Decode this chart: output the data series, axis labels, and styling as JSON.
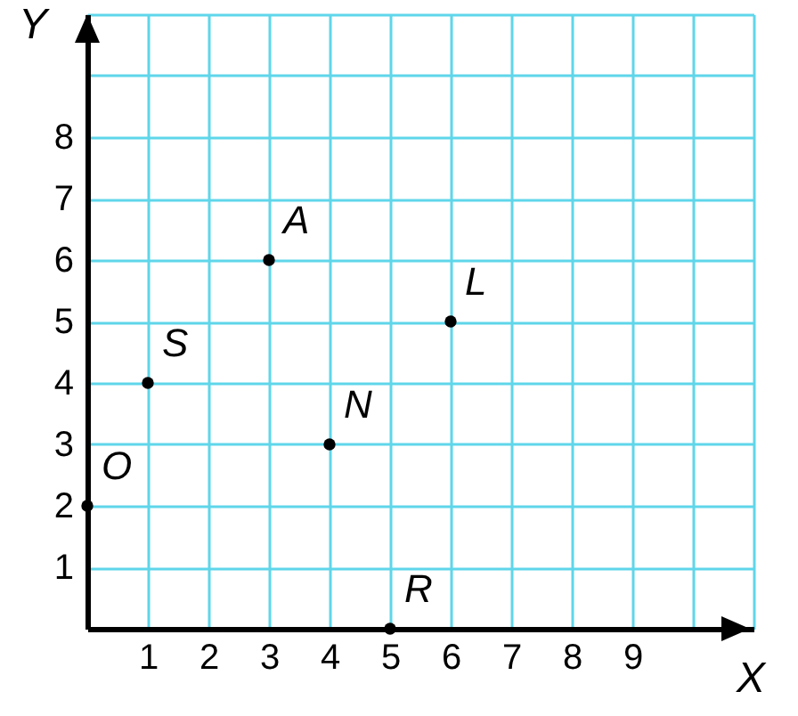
{
  "chart_data": {
    "type": "scatter",
    "xlabel": "X",
    "ylabel": "Y",
    "x": [
      0,
      1,
      3,
      4,
      6,
      5
    ],
    "series": [
      {
        "color": "#000000",
        "values": [
          2,
          4,
          6,
          3,
          5,
          0
        ]
      }
    ],
    "xlim": [
      0,
      11
    ],
    "ylim": [
      0,
      10
    ],
    "xticks": [
      1,
      2,
      3,
      4,
      5,
      6,
      7,
      8,
      9,
      {
        "value": 10,
        "label": null
      },
      {
        "value": 11,
        "label": null
      }
    ],
    "yticks": [
      1,
      2,
      3,
      4,
      5,
      6,
      7,
      8,
      {
        "value": 9,
        "label": null
      },
      {
        "value": 10,
        "label": null
      }
    ],
    "grid": true,
    "marker": "circle",
    "annotations": [
      {
        "text": "O",
        "x": 0,
        "y": 2
      },
      {
        "text": "S",
        "x": 1,
        "y": 4
      },
      {
        "text": "A",
        "x": 3,
        "y": 6
      },
      {
        "text": "N",
        "x": 4,
        "y": 3
      },
      {
        "text": "L",
        "x": 6,
        "y": 5
      },
      {
        "text": "R",
        "x": 5,
        "y": 0
      }
    ]
  }
}
